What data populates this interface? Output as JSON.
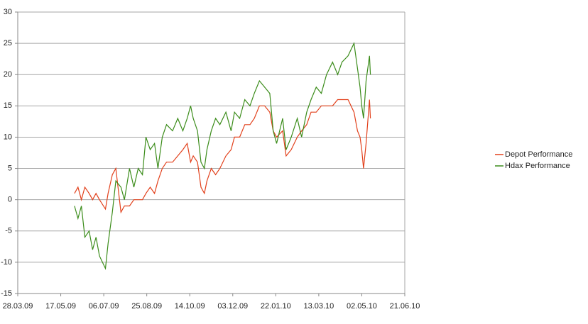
{
  "chart_data": {
    "type": "line",
    "x": [
      "02.06.09",
      "06.06.09",
      "10.06.09",
      "14.06.09",
      "19.06.09",
      "23.06.09",
      "27.06.09",
      "01.07.09",
      "08.07.09",
      "11.07.09",
      "16.07.09",
      "20.07.09",
      "26.07.09",
      "30.07.09",
      "05.08.09",
      "10.08.09",
      "15.08.09",
      "20.08.09",
      "24.08.09",
      "29.08.09",
      "03.09.09",
      "07.09.09",
      "12.09.09",
      "17.09.09",
      "24.09.09",
      "30.09.09",
      "06.10.09",
      "11.10.09",
      "15.10.09",
      "18.10.09",
      "23.10.09",
      "27.10.09",
      "31.10.09",
      "03.11.09",
      "08.11.09",
      "13.11.09",
      "18.11.09",
      "25.11.09",
      "01.12.09",
      "05.12.09",
      "11.12.09",
      "17.12.09",
      "23.12.09",
      "28.12.09",
      "03.01.10",
      "09.01.10",
      "15.01.10",
      "19.01.10",
      "23.01.10",
      "30.01.10",
      "03.02.10",
      "09.02.10",
      "16.02.10",
      "21.02.10",
      "27.02.10",
      "04.03.10",
      "10.03.10",
      "16.03.10",
      "22.03.10",
      "29.03.10",
      "04.04.10",
      "09.04.10",
      "16.04.10",
      "23.04.10",
      "27.04.10",
      "30.04.10",
      "02.05.10",
      "04.05.10",
      "07.05.10",
      "11.05.10",
      "12.05.10"
    ],
    "series": [
      {
        "name": "Depot Performance",
        "color": "#e2401b",
        "values": [
          1,
          2,
          0,
          2,
          1,
          0,
          1,
          0,
          -1.5,
          1,
          4,
          5,
          -2,
          -1,
          -1,
          0,
          0,
          0,
          1,
          2,
          1,
          3,
          5,
          6,
          6,
          7,
          8,
          9,
          6,
          7,
          6,
          2,
          1,
          3,
          5,
          4,
          5,
          7,
          8,
          10,
          10,
          12,
          12,
          13,
          15,
          15,
          14,
          11,
          10,
          11,
          7,
          8,
          10,
          11,
          12,
          14,
          14,
          15,
          15,
          15,
          16,
          16,
          16,
          14,
          11,
          10,
          8,
          5,
          9,
          16,
          13
        ]
      },
      {
        "name": "Hdax Performance",
        "color": "#3b8c1a",
        "values": [
          -1,
          -3,
          -1,
          -6,
          -5,
          -8,
          -6,
          -9,
          -11,
          -7,
          -2,
          3,
          2,
          0,
          5,
          2,
          5,
          4,
          10,
          8,
          9,
          5,
          10,
          12,
          11,
          13,
          11,
          13,
          15,
          13,
          11,
          6,
          5,
          8,
          11,
          13,
          12,
          14,
          11,
          14,
          13,
          16,
          15,
          17,
          19,
          18,
          17,
          11,
          9,
          13,
          8,
          10,
          13,
          10,
          14,
          16,
          18,
          17,
          20,
          22,
          20,
          22,
          23,
          25,
          21,
          18,
          15,
          13,
          19,
          23,
          20
        ]
      }
    ],
    "xlim": [
      "28.03.09",
      "21.06.10"
    ],
    "xticks": [
      "28.03.09",
      "17.05.09",
      "06.07.09",
      "25.08.09",
      "14.10.09",
      "03.12.09",
      "22.01.10",
      "13.03.10",
      "02.05.10",
      "21.06.10"
    ],
    "ylim": [
      -15,
      30
    ],
    "yticks": [
      -15,
      -10,
      -5,
      0,
      5,
      10,
      15,
      20,
      25,
      30
    ],
    "grid": true,
    "legend": "right"
  }
}
